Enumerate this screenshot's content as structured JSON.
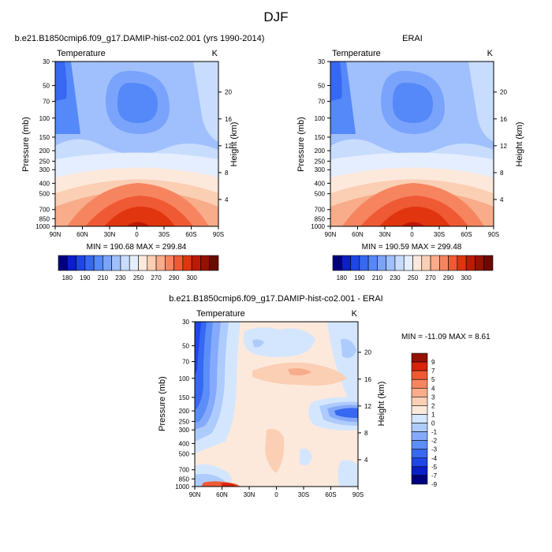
{
  "page": {
    "season": "DJF"
  },
  "palettes": {
    "abs": [
      "#00007e",
      "#0b1ec8",
      "#1e46e6",
      "#3768f2",
      "#5588f8",
      "#7aa4fb",
      "#a0c0fd",
      "#c8dcfe",
      "#e4eefe",
      "#fde9dc",
      "#fbcfb4",
      "#f8ac8a",
      "#f6855f",
      "#ef5a35",
      "#e0350f",
      "#bd1a05",
      "#951101",
      "#6b0a00"
    ],
    "diff": [
      "#00007e",
      "#0b1ec8",
      "#1e46e6",
      "#3768f2",
      "#5c8ef8",
      "#86aafb",
      "#aecbfd",
      "#d4e6fe",
      "#fde9dc",
      "#fbcfb4",
      "#f8ac8a",
      "#f6855f",
      "#ef5a35",
      "#d8230a",
      "#951101"
    ]
  },
  "chart_data": [
    {
      "type": "heatmap",
      "panel": "model",
      "title": "b.e21.B1850cmip6.f09_g17.DAMIP-hist-co2.001 (yrs 1990-2014)",
      "left_label": "Temperature",
      "right_label": "K",
      "xlabel": "",
      "ylabel": "Pressure (mb)",
      "ylabel_right": "Height (km)",
      "x_ticks": [
        "90N",
        "60N",
        "30N",
        "0",
        "30S",
        "60S",
        "90S"
      ],
      "y_ticks": [
        "30",
        "50",
        "70",
        "100",
        "150",
        "200",
        "250",
        "300",
        "400",
        "500",
        "700",
        "850",
        "1000"
      ],
      "y_ticks_right": [
        "20",
        "16",
        "12",
        "8",
        "4"
      ],
      "stats": "MIN = 190.68   MAX = 299.84",
      "colorbar": {
        "ticks": [
          "180",
          "190",
          "210",
          "230",
          "250",
          "270",
          "290",
          "300"
        ]
      },
      "layers": [
        {
          "bin": 2,
          "d": ""
        }
      ]
    },
    {
      "type": "heatmap",
      "panel": "obs",
      "title": "ERAI",
      "left_label": "Temperature",
      "right_label": "K",
      "xlabel": "",
      "ylabel": "Pressure (mb)",
      "ylabel_right": "Height (km)",
      "x_ticks": [
        "90N",
        "60N",
        "30N",
        "0",
        "30S",
        "60S",
        "90S"
      ],
      "y_ticks": [
        "30",
        "50",
        "70",
        "100",
        "150",
        "200",
        "250",
        "300",
        "400",
        "500",
        "700",
        "850",
        "1000"
      ],
      "y_ticks_right": [
        "20",
        "16",
        "12",
        "8",
        "4"
      ],
      "stats": "MIN = 190.59   MAX = 299.48",
      "colorbar": {
        "ticks": [
          "180",
          "190",
          "210",
          "230",
          "250",
          "270",
          "290",
          "300"
        ]
      }
    },
    {
      "type": "heatmap",
      "panel": "difference",
      "title": "b.e21.B1850cmip6.f09_g17.DAMIP-hist-co2.001 - ERAI",
      "left_label": "Temperature",
      "right_label": "K",
      "xlabel": "",
      "ylabel": "Pressure (mb)",
      "ylabel_right": "Height (km)",
      "x_ticks": [
        "90N",
        "60N",
        "30N",
        "0",
        "30S",
        "60S",
        "90S"
      ],
      "y_ticks": [
        "30",
        "50",
        "70",
        "100",
        "150",
        "200",
        "250",
        "300",
        "400",
        "500",
        "700",
        "850",
        "1000"
      ],
      "y_ticks_right": [
        "20",
        "16",
        "12",
        "8",
        "4"
      ],
      "stats": "MIN = -11.09  MAX =   8.61",
      "colorbar": {
        "ticks": [
          "9",
          "7",
          "5",
          "4",
          "3",
          "2",
          "1",
          "0",
          "-1",
          "-2",
          "-3",
          "-4",
          "-5",
          "-7",
          "-9"
        ]
      }
    }
  ]
}
